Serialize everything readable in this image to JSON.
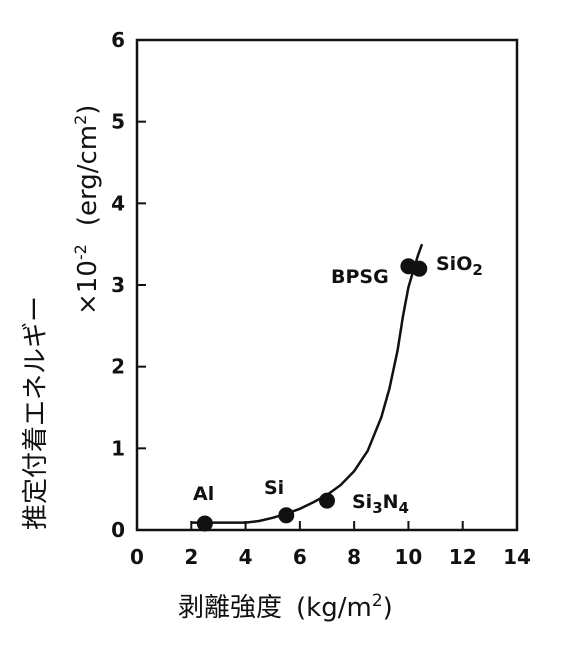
{
  "chart_data": {
    "type": "scatter",
    "xlabel_text": "剥離強度",
    "xlabel_unit": "(kg/m",
    "xlabel_unit_sup": "2",
    "xlabel_unit_close": ")",
    "ylabel_text": "推定付着エネルギー",
    "ylabel_unit": "×10",
    "ylabel_unit_sup": "-2",
    "ylabel_unit2": "(erg/cm",
    "ylabel_unit2_sup": "2",
    "ylabel_unit2_close": ")",
    "xlim": [
      0,
      14
    ],
    "ylim": [
      0,
      6
    ],
    "xticks": [
      0,
      2,
      4,
      6,
      8,
      10,
      12,
      14
    ],
    "yticks": [
      0,
      1,
      2,
      3,
      4,
      5,
      6
    ],
    "grid": false,
    "points": [
      {
        "label": "Al",
        "x": 2.5,
        "y": 0.08
      },
      {
        "label": "Si",
        "x": 5.5,
        "y": 0.18
      },
      {
        "label": "Si3N4",
        "label_main": "Si",
        "label_sub1": "3",
        "label_n": "N",
        "label_sub2": "4",
        "x": 7.0,
        "y": 0.36
      },
      {
        "label": "BPSG",
        "x": 10.0,
        "y": 3.23
      },
      {
        "label": "SiO2",
        "label_main": "SiO",
        "label_sub": "2",
        "x": 10.4,
        "y": 3.2
      }
    ],
    "fit_curve": {
      "x": [
        2.0,
        3.0,
        4.0,
        4.5,
        5.0,
        5.5,
        6.0,
        6.5,
        7.0,
        7.5,
        8.0,
        8.5,
        9.0,
        9.3,
        9.6,
        9.8,
        10.0,
        10.2,
        10.35,
        10.5
      ],
      "y": [
        0.09,
        0.09,
        0.09,
        0.11,
        0.15,
        0.2,
        0.26,
        0.34,
        0.43,
        0.55,
        0.72,
        0.97,
        1.38,
        1.73,
        2.2,
        2.62,
        2.97,
        3.2,
        3.36,
        3.5
      ]
    }
  }
}
